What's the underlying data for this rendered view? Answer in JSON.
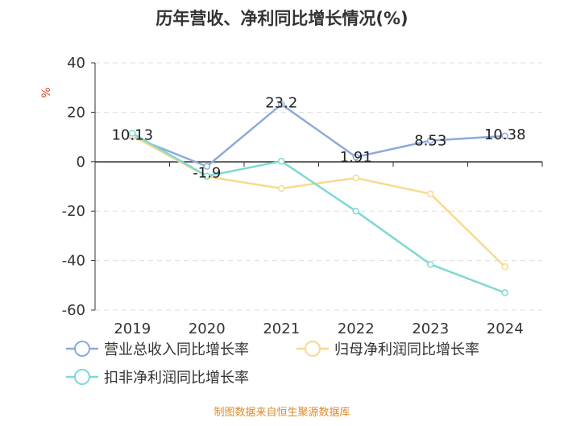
{
  "colors": {
    "revenue": "#8eaadb",
    "net_profit": "#f8d98e",
    "non_recurring": "#7fd8d4",
    "source": "#e08a2b",
    "unit": "#e03a2f"
  },
  "chart_data": {
    "type": "line",
    "title": "历年营收、净利同比增长情况(%)",
    "ylabel": "%",
    "x": [
      "2019",
      "2020",
      "2021",
      "2022",
      "2023",
      "2024"
    ],
    "ylim": [
      -60,
      40
    ],
    "yticks": [
      40,
      20,
      0,
      -20,
      -40,
      -60
    ],
    "grid": true,
    "legend_position": "bottom",
    "series": [
      {
        "name": "营业总收入同比增长率",
        "color": "#8eaadb",
        "values": [
          10.13,
          -1.9,
          23.2,
          1.91,
          8.53,
          10.38
        ],
        "labels": [
          "10.13",
          "-1.9",
          "23.2",
          "1.91",
          "8.53",
          "10.38"
        ]
      },
      {
        "name": "归母净利润同比增长率",
        "color": "#f8d98e",
        "values": [
          10.5,
          -6.0,
          -10.8,
          -6.6,
          -13.0,
          -42.5
        ]
      },
      {
        "name": "扣非净利润同比增长率",
        "color": "#7fd8d4",
        "values": [
          11.5,
          -5.8,
          0.2,
          -20.0,
          -41.5,
          -53.0
        ]
      }
    ]
  },
  "footer": {
    "source": "制图数据来自恒生聚源数据库"
  }
}
